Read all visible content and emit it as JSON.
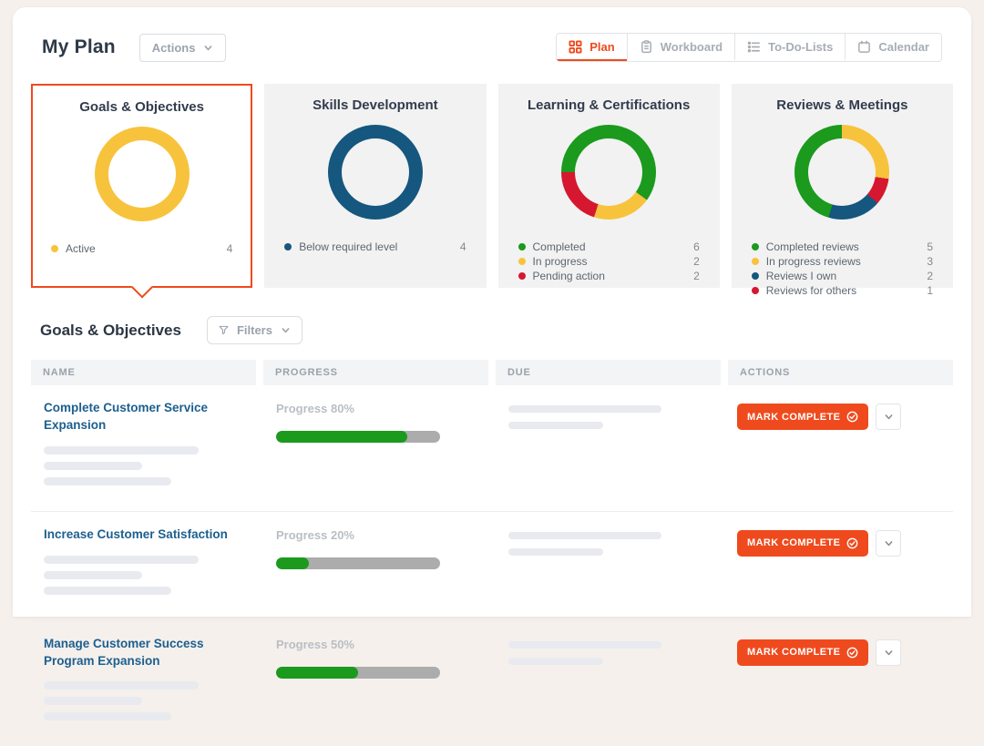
{
  "colors": {
    "accent_orange": "#EF4A1D",
    "yellow": "#F8C33C",
    "green": "#1B9A1D",
    "red": "#D5182F",
    "teal_blue": "#15577E",
    "title_navy": "#323C4D",
    "link_blue": "#1C5F8F"
  },
  "header": {
    "title": "My Plan",
    "actions_label": "Actions"
  },
  "tabs": [
    {
      "label": "Plan",
      "icon": "grid-icon",
      "active": true
    },
    {
      "label": "Workboard",
      "icon": "clipboard-icon",
      "active": false
    },
    {
      "label": "To-Do-Lists",
      "icon": "list-icon",
      "active": false
    },
    {
      "label": "Calendar",
      "icon": "calendar-icon",
      "active": false
    }
  ],
  "cards": [
    {
      "title": "Goals & Objectives",
      "selected": true,
      "donut": {
        "start_deg": 0,
        "slices": [
          {
            "color": "#F8C33C",
            "value": 4
          }
        ]
      },
      "legend": [
        {
          "label": "Active",
          "value": 4,
          "color": "#F8C33C"
        }
      ]
    },
    {
      "title": "Skills Development",
      "selected": false,
      "donut": {
        "start_deg": 0,
        "slices": [
          {
            "color": "#15577E",
            "value": 4
          }
        ]
      },
      "legend": [
        {
          "label": "Below required level",
          "value": 4,
          "color": "#15577E"
        }
      ]
    },
    {
      "title": "Learning & Certifications",
      "selected": false,
      "donut": {
        "start_deg": 270,
        "slices": [
          {
            "color": "#1B9A1D",
            "value": 6
          },
          {
            "color": "#F8C33C",
            "value": 2
          },
          {
            "color": "#D5182F",
            "value": 2
          }
        ]
      },
      "legend": [
        {
          "label": "Completed",
          "value": 6,
          "color": "#1B9A1D"
        },
        {
          "label": "In progress",
          "value": 2,
          "color": "#F8C33C"
        },
        {
          "label": "Pending action",
          "value": 2,
          "color": "#D5182F"
        }
      ]
    },
    {
      "title": "Reviews & Meetings",
      "selected": false,
      "donut": {
        "start_deg": 0,
        "slices": [
          {
            "color": "#F8C33C",
            "value": 3
          },
          {
            "color": "#D5182F",
            "value": 1
          },
          {
            "color": "#15577E",
            "value": 2
          },
          {
            "color": "#1B9A1D",
            "value": 5
          }
        ]
      },
      "legend": [
        {
          "label": "Completed reviews",
          "value": 5,
          "color": "#1B9A1D"
        },
        {
          "label": "In progress reviews",
          "value": 3,
          "color": "#F8C33C"
        },
        {
          "label": "Reviews I own",
          "value": 2,
          "color": "#15577E"
        },
        {
          "label": "Reviews for others",
          "value": 1,
          "color": "#D5182F"
        }
      ]
    }
  ],
  "section": {
    "title": "Goals & Objectives",
    "filters_label": "Filters"
  },
  "table": {
    "columns": [
      "NAME",
      "PROGRESS",
      "DUE",
      "ACTIONS"
    ],
    "rows": [
      {
        "name": "Complete Customer Service Expansion",
        "progress_label": "Progress 80%",
        "progress_pct": 80,
        "action_label": "MARK COMPLETE"
      },
      {
        "name": "Increase Customer Satisfaction",
        "progress_label": "Progress 20%",
        "progress_pct": 20,
        "action_label": "MARK COMPLETE"
      },
      {
        "name": "Manage Customer Success Program Expansion",
        "progress_label": "Progress 50%",
        "progress_pct": 50,
        "action_label": "MARK COMPLETE"
      }
    ]
  },
  "chart_data": [
    {
      "type": "pie",
      "title": "Goals & Objectives",
      "labels": [
        "Active"
      ],
      "values": [
        4
      ],
      "colors": [
        "#F8C33C"
      ]
    },
    {
      "type": "pie",
      "title": "Skills Development",
      "labels": [
        "Below required level"
      ],
      "values": [
        4
      ],
      "colors": [
        "#15577E"
      ]
    },
    {
      "type": "pie",
      "title": "Learning & Certifications",
      "labels": [
        "Completed",
        "In progress",
        "Pending action"
      ],
      "values": [
        6,
        2,
        2
      ],
      "colors": [
        "#1B9A1D",
        "#F8C33C",
        "#D5182F"
      ]
    },
    {
      "type": "pie",
      "title": "Reviews & Meetings",
      "labels": [
        "Completed reviews",
        "In progress reviews",
        "Reviews I own",
        "Reviews for others"
      ],
      "values": [
        5,
        3,
        2,
        1
      ],
      "colors": [
        "#1B9A1D",
        "#F8C33C",
        "#15577E",
        "#D5182F"
      ]
    }
  ]
}
